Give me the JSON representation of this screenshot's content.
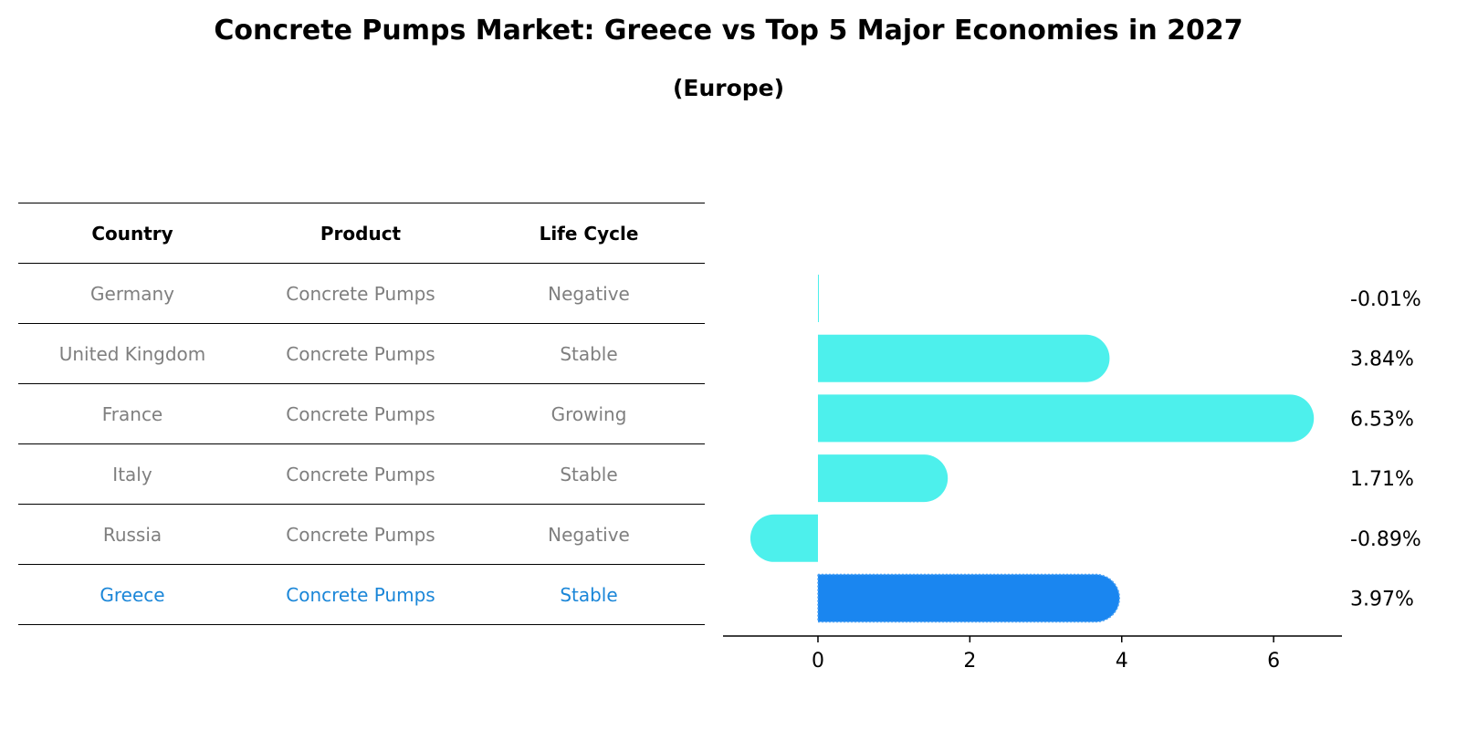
{
  "title": "Concrete Pumps Market: Greece vs Top 5 Major Economies in 2027",
  "subtitle": "(Europe)",
  "table": {
    "headers": [
      "Country",
      "Product",
      "Life Cycle"
    ],
    "rows": [
      [
        "Germany",
        "Concrete Pumps",
        "Negative"
      ],
      [
        "United Kingdom",
        "Concrete Pumps",
        "Stable"
      ],
      [
        "France",
        "Concrete Pumps",
        "Growing"
      ],
      [
        "Italy",
        "Concrete Pumps",
        "Stable"
      ],
      [
        "Russia",
        "Concrete Pumps",
        "Negative"
      ],
      [
        "Greece",
        "Concrete Pumps",
        "Stable"
      ]
    ],
    "highlight_row": 5
  },
  "colors": {
    "bar": "#4df0ec",
    "highlight_bar": "#1a86f0",
    "highlight_text": "#1a86d8",
    "muted_text": "#7f7f7f"
  },
  "chart_data": {
    "type": "bar",
    "orientation": "horizontal",
    "categories": [
      "Germany",
      "United Kingdom",
      "France",
      "Italy",
      "Russia",
      "Greece"
    ],
    "values": [
      -0.01,
      3.84,
      6.53,
      1.71,
      -0.89,
      3.97
    ],
    "value_labels": [
      "-0.01%",
      "3.84%",
      "6.53%",
      "1.71%",
      "-0.89%",
      "3.97%"
    ],
    "highlight_index": 5,
    "xlim": [
      -1.25,
      6.9
    ],
    "xticks": [
      0,
      2,
      4,
      6
    ],
    "xlabel": "",
    "ylabel": "",
    "grid": false
  }
}
